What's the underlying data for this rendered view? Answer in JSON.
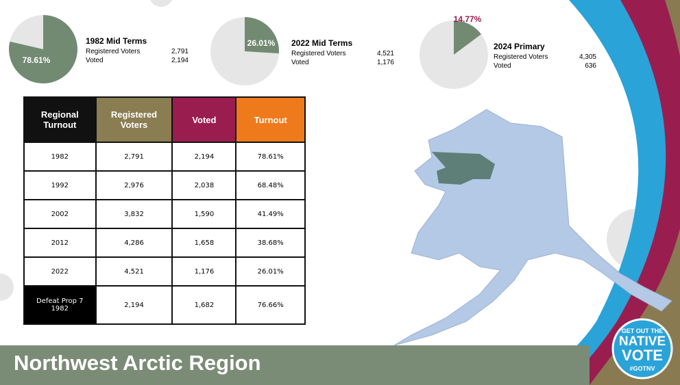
{
  "pies": [
    {
      "title": "1982 Mid Terms",
      "value": 78.61,
      "value_label": "78.61%",
      "rows": [
        [
          "Registered Voters",
          "2,791"
        ],
        [
          "Voted",
          "2,194"
        ]
      ]
    },
    {
      "title": "2022 Mid Terms",
      "value": 26.01,
      "value_label": "26.01%",
      "rows": [
        [
          "Registered Voters",
          "4,521"
        ],
        [
          "Voted",
          "1,176"
        ]
      ]
    },
    {
      "title": "2024 Primary",
      "value": 14.77,
      "value_label": "14.77%",
      "rows": [
        [
          "Registered Voters",
          "4,305"
        ],
        [
          "Voted",
          "636"
        ]
      ]
    }
  ],
  "table": {
    "header": [
      "Regional Turnout",
      "Registered Voters",
      "Voted",
      "Turnout"
    ],
    "rows": [
      [
        "1982",
        "2,791",
        "2,194",
        "78.61%"
      ],
      [
        "1992",
        "2,976",
        "2,038",
        "68.48%"
      ],
      [
        "2002",
        "3,832",
        "1,590",
        "41.49%"
      ],
      [
        "2012",
        "4,286",
        "1,658",
        "38.68%"
      ],
      [
        "2022",
        "4,521",
        "1,176",
        "26.01%"
      ],
      [
        "Defeat Prop 7 1982",
        "2,194",
        "1,682",
        "76.66%"
      ]
    ]
  },
  "footer": {
    "title": "Northwest Arctic Region"
  },
  "badge": {
    "lines": [
      "GET OUT THE",
      "NATIVE",
      "VOTE",
      "#GOTNV"
    ]
  }
}
